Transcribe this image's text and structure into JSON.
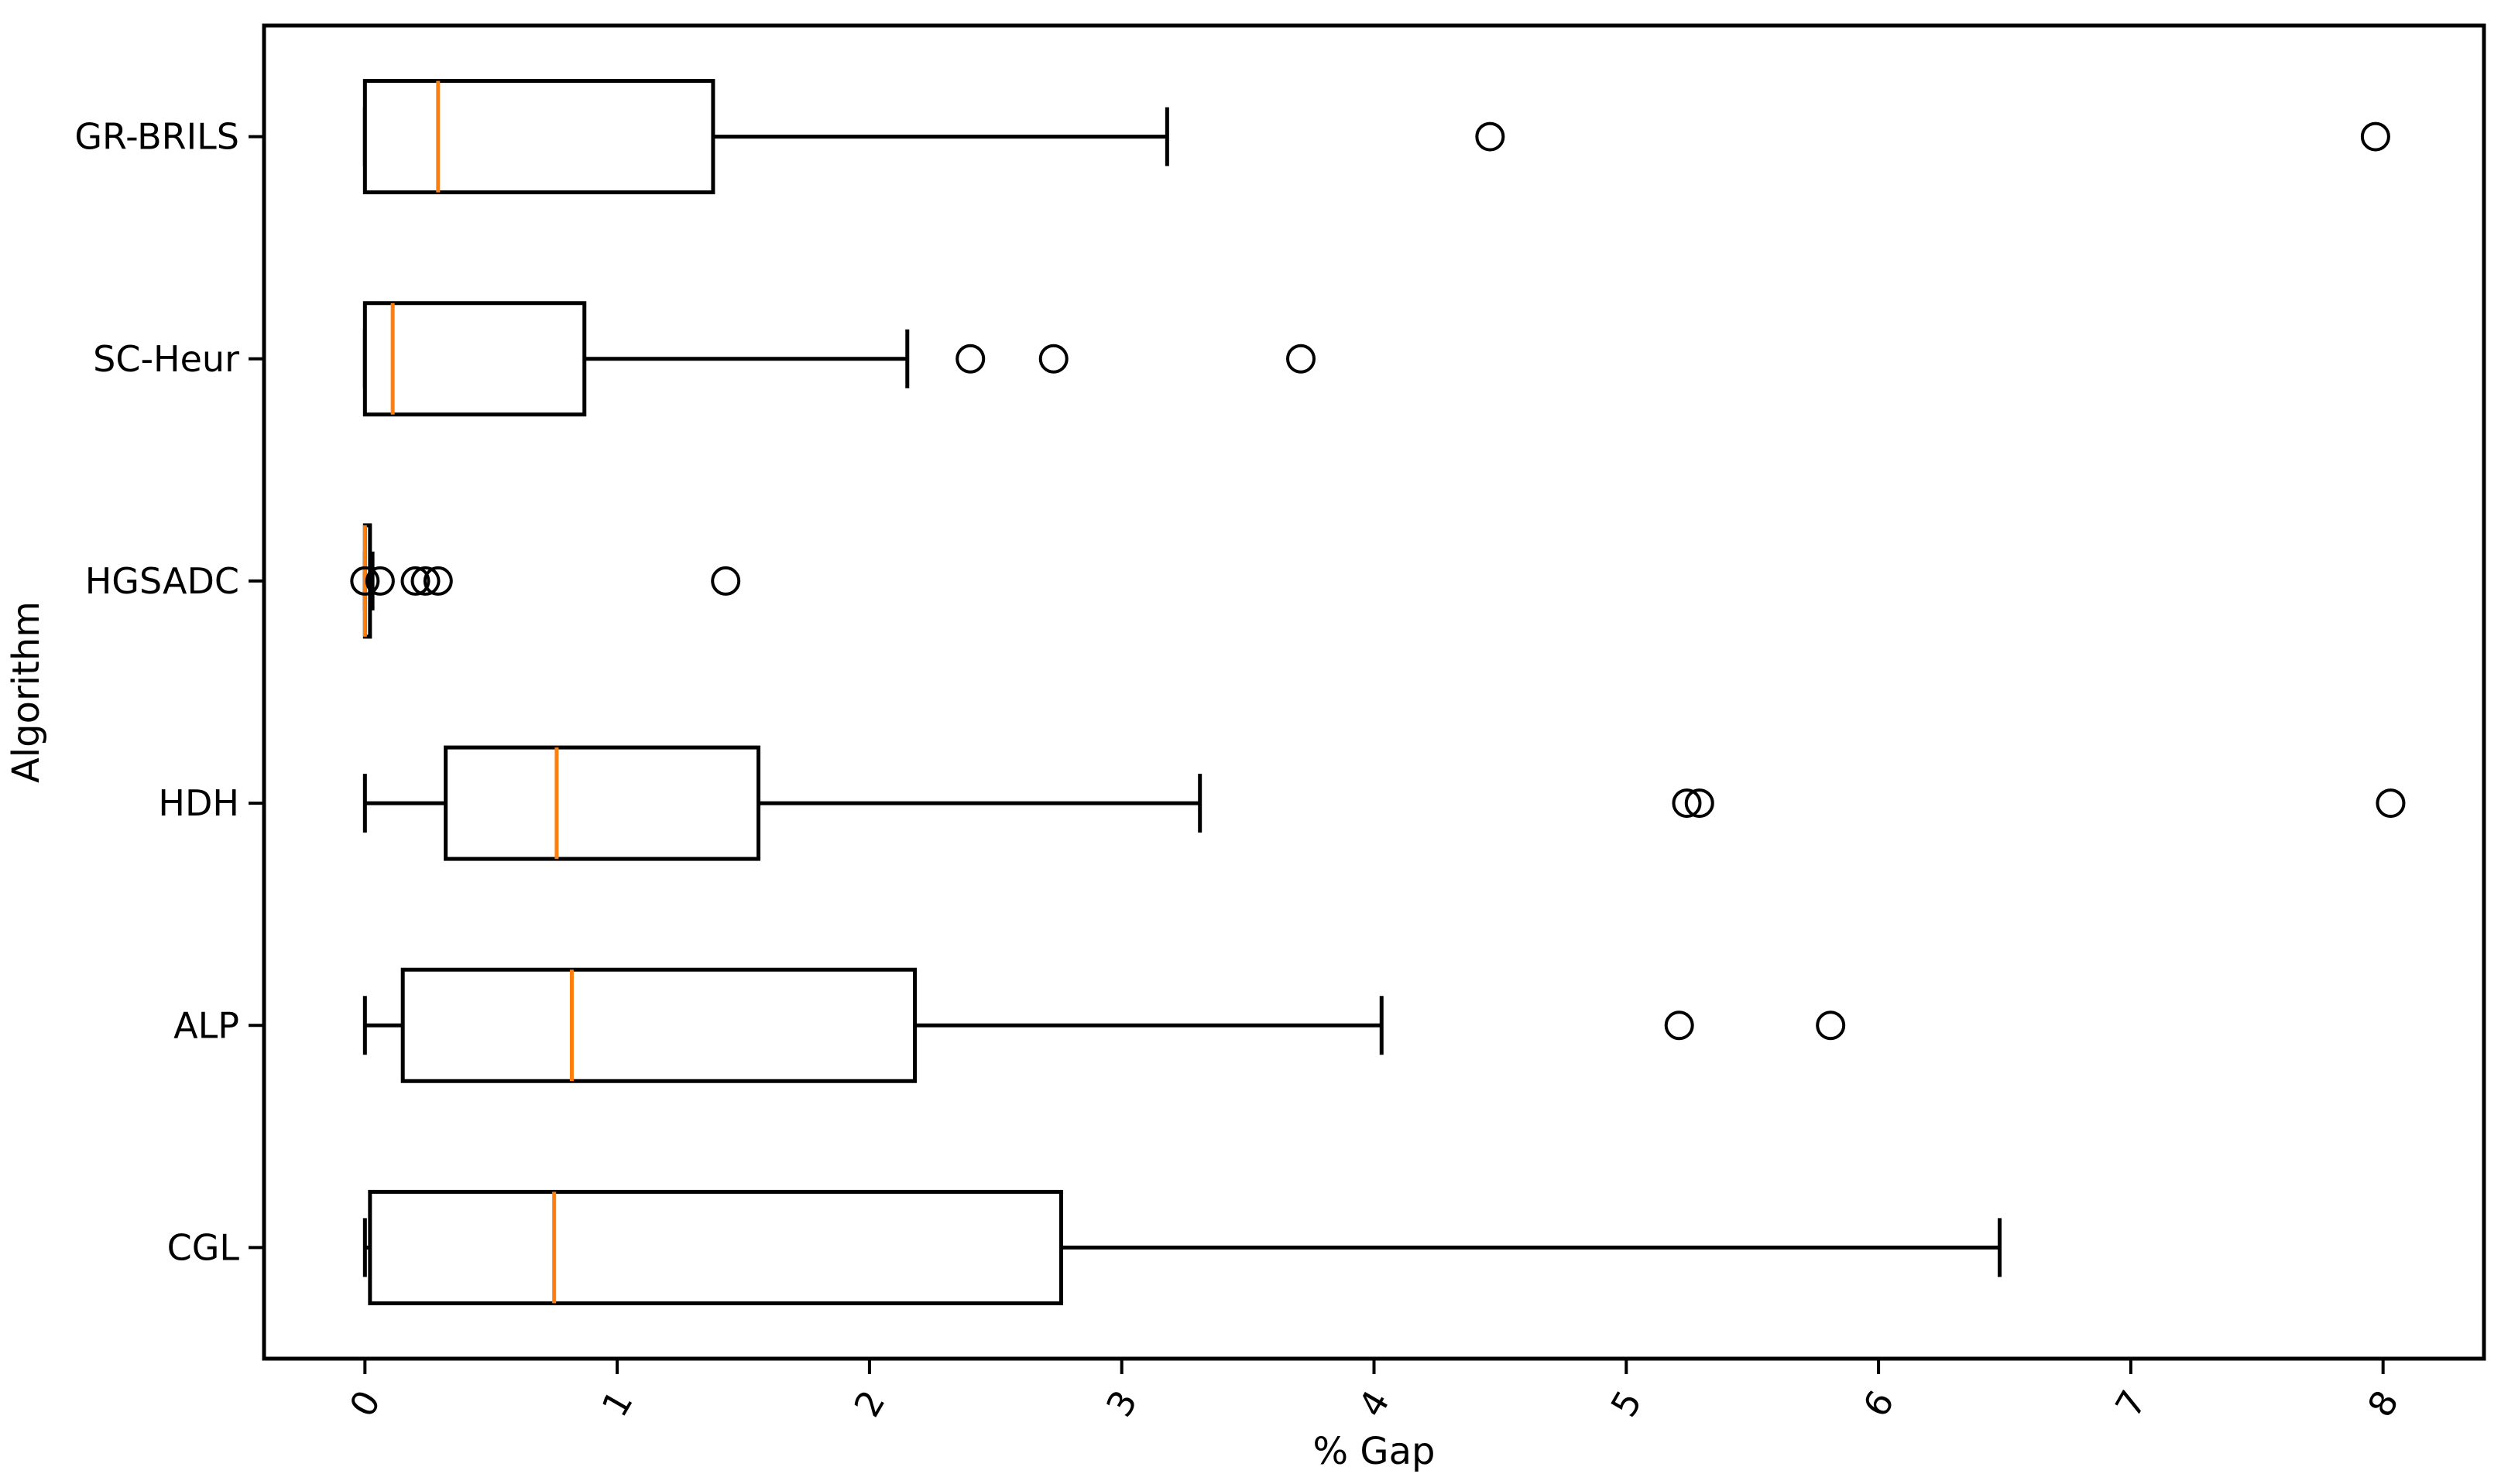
{
  "chart_data": {
    "type": "boxplot",
    "orientation": "horizontal",
    "title": "",
    "xlabel": "% Gap",
    "ylabel": "Algorithm",
    "xlim": [
      -0.4,
      8.4
    ],
    "x_ticks": [
      0,
      1,
      2,
      3,
      4,
      5,
      6,
      7,
      8
    ],
    "x_tick_rotation_deg": 60,
    "grid": false,
    "legend": "none",
    "categories_top_to_bottom": [
      "GR-BRILS",
      "SC-Heur",
      "HGSADC",
      "HDH",
      "ALP",
      "CGL"
    ],
    "colors": {
      "box": "#000000",
      "whisker": "#000000",
      "median": "#ff7f0e",
      "flier": "#000000",
      "background": "#ffffff"
    },
    "series": [
      {
        "label": "GR-BRILS",
        "whislo": 0.0,
        "q1": 0.0,
        "med": 0.29,
        "q3": 1.38,
        "whishi": 3.18,
        "fliers": [
          4.46,
          7.97
        ]
      },
      {
        "label": "SC-Heur",
        "whislo": 0.0,
        "q1": 0.0,
        "med": 0.11,
        "q3": 0.87,
        "whishi": 2.15,
        "fliers": [
          2.4,
          2.73,
          3.71
        ]
      },
      {
        "label": "HGSADC",
        "whislo": 0.0,
        "q1": 0.0,
        "med": 0.0,
        "q3": 0.02,
        "whishi": 0.03,
        "fliers": [
          0.0,
          0.06,
          0.2,
          0.24,
          0.29,
          1.43
        ]
      },
      {
        "label": "HDH",
        "whislo": 0.0,
        "q1": 0.32,
        "med": 0.76,
        "q3": 1.56,
        "whishi": 3.31,
        "fliers": [
          5.24,
          5.29,
          8.03
        ]
      },
      {
        "label": "ALP",
        "whislo": 0.0,
        "q1": 0.15,
        "med": 0.82,
        "q3": 2.18,
        "whishi": 4.03,
        "fliers": [
          5.21,
          5.81
        ]
      },
      {
        "label": "CGL",
        "whislo": 0.0,
        "q1": 0.02,
        "med": 0.75,
        "q3": 2.76,
        "whishi": 6.48,
        "fliers": []
      }
    ]
  }
}
